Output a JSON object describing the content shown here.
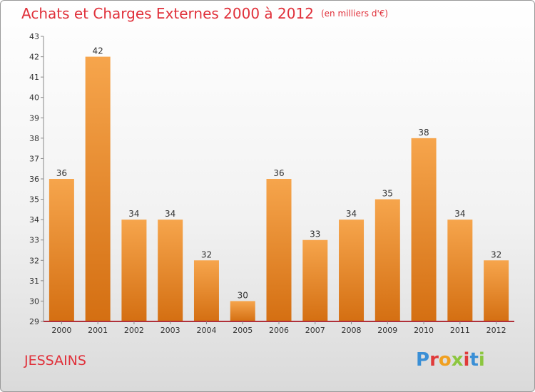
{
  "title": "Achats et Charges Externes 2000 à 2012",
  "unit": "(en milliers d'€)",
  "commune": "JESSAINS",
  "logo": {
    "letters": [
      "P",
      "r",
      "o",
      "x",
      "i",
      "t",
      "i"
    ],
    "colors": [
      "#3a8fd6",
      "#e03a3a",
      "#f0a020",
      "#8cc63f",
      "#e03a3a",
      "#3a8fd6"
    ]
  },
  "colors": {
    "bar_top": "#f6a54c",
    "bar_bottom": "#d46f12",
    "title": "#e0303a",
    "axis": "#b0303a"
  },
  "chart_data": {
    "type": "bar",
    "title": "Achats et Charges Externes 2000 à 2012",
    "subtitle": "(en milliers d'€)",
    "categories": [
      "2000",
      "2001",
      "2002",
      "2003",
      "2004",
      "2005",
      "2006",
      "2007",
      "2008",
      "2009",
      "2010",
      "2011",
      "2012"
    ],
    "values": [
      36,
      42,
      34,
      34,
      32,
      30,
      36,
      33,
      34,
      35,
      38,
      34,
      32
    ],
    "ylim": [
      29,
      43
    ],
    "yticks": [
      29,
      30,
      31,
      32,
      33,
      34,
      35,
      36,
      37,
      38,
      39,
      40,
      41,
      42,
      43
    ],
    "grid": false,
    "legend": "none",
    "xlabel": "",
    "ylabel": ""
  }
}
